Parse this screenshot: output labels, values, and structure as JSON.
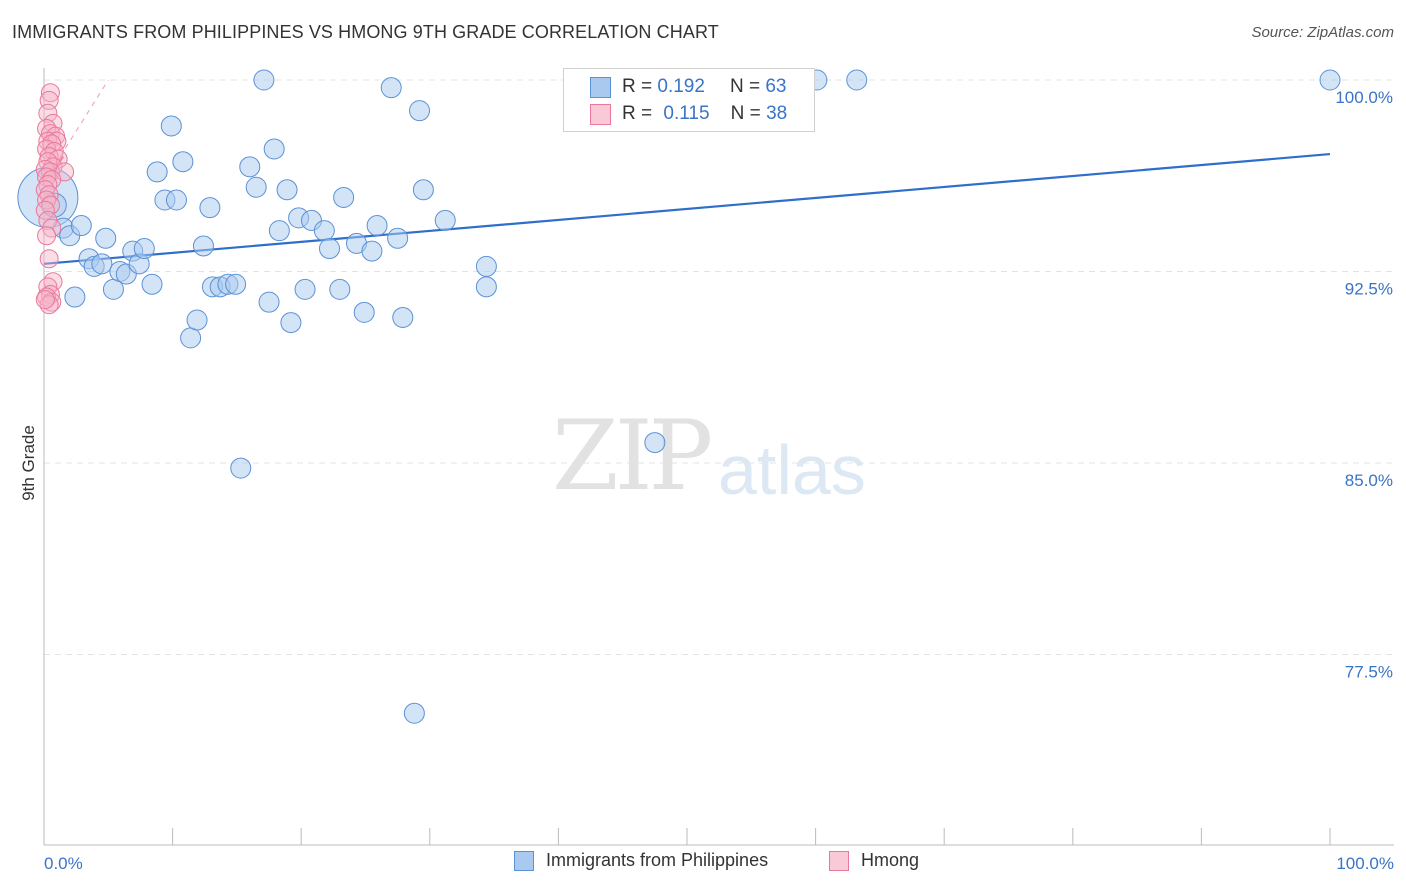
{
  "title": "IMMIGRANTS FROM PHILIPPINES VS HMONG 9TH GRADE CORRELATION CHART",
  "source": "Source: ZipAtlas.com",
  "watermark": {
    "zip": "ZIP",
    "atlas": "atlas"
  },
  "legend_top": [
    {
      "r_label": "R =",
      "r_value": "0.192",
      "n_label": "N =",
      "n_value": "63"
    },
    {
      "r_label": "R =",
      "r_value": "0.115",
      "n_label": "N =",
      "n_value": "38"
    }
  ],
  "legend_bottom": [
    "Immigrants from Philippines",
    "Hmong"
  ],
  "colors": {
    "blue_fill": "#a9c9ef",
    "blue_stroke": "#5b91d6",
    "blue_line": "#2f6fca",
    "pink_fill": "#f6b3c8",
    "pink_stroke": "#e9789c",
    "pink_line": "#e8658f",
    "axis_text": "#3a74c6",
    "grid": "#e3e3e3"
  },
  "chart_data": {
    "type": "scatter",
    "title": "IMMIGRANTS FROM PHILIPPINES VS HMONG 9TH GRADE CORRELATION CHART",
    "xlabel": "",
    "ylabel": "9th Grade",
    "xlim": [
      0,
      100
    ],
    "ylim": [
      70,
      101.2
    ],
    "x_tick_labels": [
      "0.0%",
      "100.0%"
    ],
    "y_ticks": [
      {
        "value": 100.0,
        "label": "100.0%"
      },
      {
        "value": 92.5,
        "label": "92.5%"
      },
      {
        "value": 85.0,
        "label": "85.0%"
      },
      {
        "value": 77.5,
        "label": "77.5%"
      }
    ],
    "series": [
      {
        "name": "Immigrants from Philippines",
        "color": "blue",
        "R": 0.192,
        "N": 63,
        "trend": {
          "x": [
            0,
            100
          ],
          "y": [
            92.8,
            97.1
          ]
        },
        "points": [
          [
            0.3,
            95.4,
            30
          ],
          [
            0.8,
            95.1,
            12
          ],
          [
            1.5,
            94.2,
            10
          ],
          [
            2.0,
            93.9,
            10
          ],
          [
            2.4,
            91.5,
            10
          ],
          [
            2.9,
            94.3,
            10
          ],
          [
            3.5,
            93.0,
            10
          ],
          [
            3.9,
            92.7,
            10
          ],
          [
            4.5,
            92.8,
            10
          ],
          [
            4.8,
            93.8,
            10
          ],
          [
            5.4,
            91.8,
            10
          ],
          [
            5.9,
            92.5,
            10
          ],
          [
            6.4,
            92.4,
            10
          ],
          [
            6.9,
            93.3,
            10
          ],
          [
            7.4,
            92.8,
            10
          ],
          [
            7.8,
            93.4,
            10
          ],
          [
            8.4,
            92.0,
            10
          ],
          [
            8.8,
            96.4,
            10
          ],
          [
            9.4,
            95.3,
            10
          ],
          [
            9.9,
            98.2,
            10
          ],
          [
            10.3,
            95.3,
            10
          ],
          [
            10.8,
            96.8,
            10
          ],
          [
            11.4,
            89.9,
            10
          ],
          [
            11.9,
            90.6,
            10
          ],
          [
            12.4,
            93.5,
            10
          ],
          [
            12.9,
            95.0,
            10
          ],
          [
            13.1,
            91.9,
            10
          ],
          [
            13.7,
            91.9,
            10
          ],
          [
            14.3,
            92.0,
            10
          ],
          [
            14.9,
            92.0,
            10
          ],
          [
            15.3,
            84.8,
            10
          ],
          [
            16.0,
            96.6,
            10
          ],
          [
            16.5,
            95.8,
            10
          ],
          [
            17.1,
            100.0,
            10
          ],
          [
            17.5,
            91.3,
            10
          ],
          [
            17.9,
            97.3,
            10
          ],
          [
            18.3,
            94.1,
            10
          ],
          [
            18.9,
            95.7,
            10
          ],
          [
            19.2,
            90.5,
            10
          ],
          [
            19.8,
            94.6,
            10
          ],
          [
            20.3,
            91.8,
            10
          ],
          [
            20.8,
            94.5,
            10
          ],
          [
            21.8,
            94.1,
            10
          ],
          [
            22.2,
            93.4,
            10
          ],
          [
            23.0,
            91.8,
            10
          ],
          [
            23.3,
            95.4,
            10
          ],
          [
            24.3,
            93.6,
            10
          ],
          [
            24.9,
            90.9,
            10
          ],
          [
            25.5,
            93.3,
            10
          ],
          [
            25.9,
            94.3,
            10
          ],
          [
            27.0,
            99.7,
            10
          ],
          [
            27.5,
            93.8,
            10
          ],
          [
            27.9,
            90.7,
            10
          ],
          [
            28.8,
            75.2,
            10
          ],
          [
            29.2,
            98.8,
            10
          ],
          [
            29.5,
            95.7,
            10
          ],
          [
            31.2,
            94.5,
            10
          ],
          [
            34.4,
            92.7,
            10
          ],
          [
            34.4,
            91.9,
            10
          ],
          [
            47.5,
            85.8,
            10
          ],
          [
            60.1,
            100.0,
            10
          ],
          [
            63.2,
            100.0,
            10
          ],
          [
            100.0,
            100.0,
            10
          ]
        ]
      },
      {
        "name": "Hmong",
        "color": "pink",
        "R": 0.115,
        "N": 38,
        "trend": {
          "x": [
            0,
            1.5
          ],
          "y": [
            96.0,
            97.0
          ]
        },
        "trend_dashed": {
          "x": [
            0,
            5.0
          ],
          "y": [
            96.0,
            100.0
          ]
        },
        "points": [
          [
            0.5,
            99.5,
            9
          ],
          [
            0.4,
            99.2,
            9
          ],
          [
            0.3,
            98.7,
            9
          ],
          [
            0.7,
            98.3,
            9
          ],
          [
            0.2,
            98.1,
            9
          ],
          [
            0.5,
            97.9,
            9
          ],
          [
            0.9,
            97.8,
            9
          ],
          [
            0.3,
            97.6,
            9
          ],
          [
            1.0,
            97.6,
            9
          ],
          [
            0.6,
            97.5,
            9
          ],
          [
            0.2,
            97.3,
            9
          ],
          [
            0.8,
            97.2,
            9
          ],
          [
            0.4,
            97.0,
            9
          ],
          [
            1.1,
            96.9,
            9
          ],
          [
            0.3,
            96.8,
            9
          ],
          [
            0.7,
            96.6,
            9
          ],
          [
            0.1,
            96.5,
            9
          ],
          [
            0.5,
            96.4,
            9
          ],
          [
            1.6,
            96.4,
            9
          ],
          [
            0.2,
            96.2,
            9
          ],
          [
            0.6,
            96.1,
            9
          ],
          [
            0.3,
            95.9,
            9
          ],
          [
            0.1,
            95.7,
            9
          ],
          [
            0.4,
            95.5,
            9
          ],
          [
            0.2,
            95.3,
            9
          ],
          [
            0.5,
            95.1,
            9
          ],
          [
            0.1,
            94.9,
            9
          ],
          [
            0.3,
            94.5,
            9
          ],
          [
            0.6,
            94.2,
            9
          ],
          [
            0.2,
            93.9,
            9
          ],
          [
            0.4,
            93.0,
            9
          ],
          [
            0.7,
            92.1,
            9
          ],
          [
            0.3,
            91.9,
            9
          ],
          [
            0.5,
            91.6,
            9
          ],
          [
            0.2,
            91.5,
            9
          ],
          [
            0.6,
            91.3,
            9
          ],
          [
            0.4,
            91.2,
            9
          ],
          [
            0.1,
            91.4,
            9
          ]
        ]
      }
    ]
  }
}
